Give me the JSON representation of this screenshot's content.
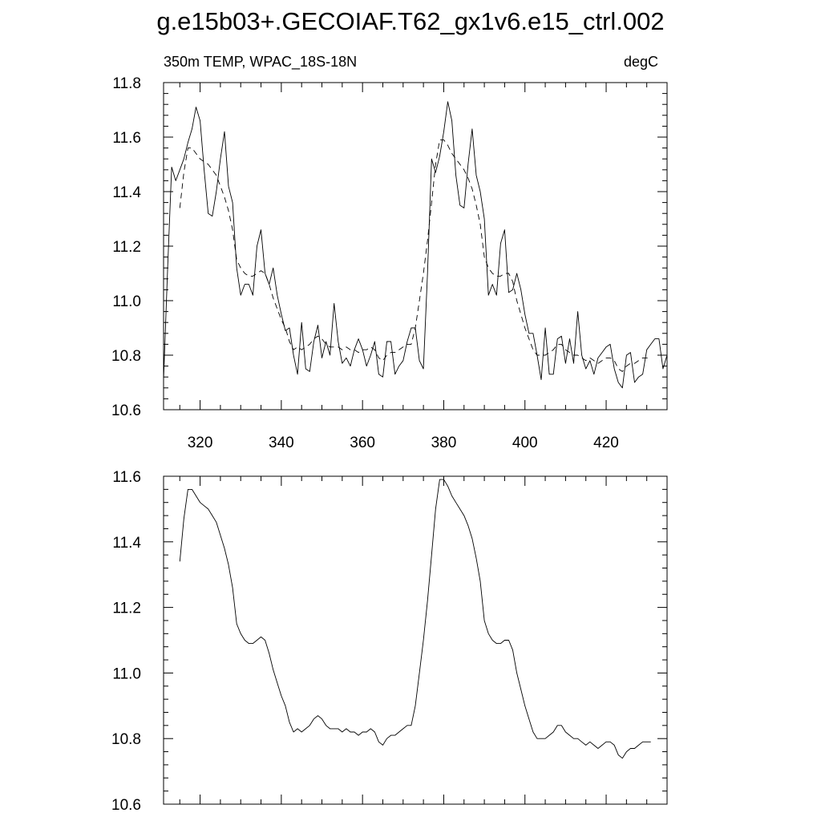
{
  "figure": {
    "title": "g.e15b03+.GECOIAF.T62_gx1v6.e15_ctrl.002"
  },
  "chart_data": [
    {
      "type": "line",
      "subtitle_left": "350m TEMP, WPAC_18S-18N",
      "subtitle_right": "degC",
      "xlabel": "",
      "ylabel": "",
      "xlim": [
        311,
        435
      ],
      "ylim": [
        10.6,
        11.8
      ],
      "xticks": [
        320,
        340,
        360,
        380,
        400,
        420
      ],
      "xtick_labels": [
        "320",
        "340",
        "360",
        "380",
        "400",
        "420"
      ],
      "yticks": [
        10.6,
        10.8,
        11.0,
        11.2,
        11.4,
        11.6,
        11.8
      ],
      "ytick_labels": [
        "10.6",
        "10.8",
        "11.0",
        "11.2",
        "11.4",
        "11.6",
        "11.8"
      ],
      "grid": false,
      "series": [
        {
          "style": "solid",
          "color": "#000000",
          "x": [
            311,
            312,
            313,
            314,
            315,
            316,
            317,
            318,
            319,
            320,
            321,
            322,
            323,
            324,
            325,
            326,
            327,
            328,
            329,
            330,
            331,
            332,
            333,
            334,
            335,
            336,
            337,
            338,
            339,
            340,
            341,
            342,
            343,
            344,
            345,
            346,
            347,
            348,
            349,
            350,
            351,
            352,
            353,
            354,
            355,
            356,
            357,
            358,
            359,
            360,
            361,
            362,
            363,
            364,
            365,
            366,
            367,
            368,
            369,
            370,
            371,
            372,
            373,
            374,
            375,
            376,
            377,
            378,
            379,
            380,
            381,
            382,
            383,
            384,
            385,
            386,
            387,
            388,
            389,
            390,
            391,
            392,
            393,
            394,
            395,
            396,
            397,
            398,
            399,
            400,
            401,
            402,
            403,
            404,
            405,
            406,
            407,
            408,
            409,
            410,
            411,
            412,
            413,
            414,
            415,
            416,
            417,
            418,
            419,
            420,
            421,
            422,
            423,
            424,
            425,
            426,
            427,
            428,
            429,
            430,
            431,
            432,
            433,
            434,
            435
          ],
          "values": [
            10.71,
            11.12,
            11.49,
            11.44,
            11.48,
            11.52,
            11.58,
            11.63,
            11.71,
            11.66,
            11.48,
            11.32,
            11.31,
            11.4,
            11.52,
            11.62,
            11.42,
            11.36,
            11.12,
            11.02,
            11.06,
            11.06,
            11.02,
            11.2,
            11.26,
            11.1,
            11.06,
            11.12,
            11.02,
            10.95,
            10.89,
            10.9,
            10.8,
            10.73,
            10.92,
            10.75,
            10.74,
            10.85,
            10.91,
            10.79,
            10.85,
            10.8,
            10.99,
            10.85,
            10.77,
            10.79,
            10.76,
            10.82,
            10.86,
            10.82,
            10.76,
            10.8,
            10.85,
            10.73,
            10.72,
            10.85,
            10.85,
            10.73,
            10.76,
            10.78,
            10.85,
            10.9,
            10.9,
            10.78,
            10.75,
            11.1,
            11.52,
            11.47,
            11.53,
            11.62,
            11.73,
            11.66,
            11.46,
            11.35,
            11.34,
            11.5,
            11.63,
            11.46,
            11.4,
            11.3,
            11.02,
            11.06,
            11.02,
            11.21,
            11.26,
            11.03,
            11.04,
            11.1,
            11.04,
            10.95,
            10.88,
            10.88,
            10.8,
            10.71,
            10.9,
            10.73,
            10.73,
            10.86,
            10.87,
            10.77,
            10.86,
            10.77,
            10.96,
            10.8,
            10.75,
            10.78,
            10.73,
            10.79,
            10.81,
            10.83,
            10.84,
            10.75,
            10.7,
            10.68,
            10.8,
            10.81,
            10.7,
            10.72,
            10.73,
            10.82,
            10.84,
            10.86,
            10.86,
            10.75,
            10.8
          ]
        },
        {
          "style": "dashed",
          "color": "#000000",
          "x": [
            315,
            316,
            317,
            318,
            319,
            320,
            321,
            322,
            323,
            324,
            325,
            326,
            327,
            328,
            329,
            330,
            331,
            332,
            333,
            334,
            335,
            336,
            337,
            338,
            339,
            340,
            341,
            342,
            343,
            344,
            345,
            346,
            347,
            348,
            349,
            350,
            351,
            352,
            353,
            354,
            355,
            356,
            357,
            358,
            359,
            360,
            361,
            362,
            363,
            364,
            365,
            366,
            367,
            368,
            369,
            370,
            371,
            372,
            373,
            374,
            375,
            376,
            377,
            378,
            379,
            380,
            381,
            382,
            383,
            384,
            385,
            386,
            387,
            388,
            389,
            390,
            391,
            392,
            393,
            394,
            395,
            396,
            397,
            398,
            399,
            400,
            401,
            402,
            403,
            404,
            405,
            406,
            407,
            408,
            409,
            410,
            411,
            412,
            413,
            414,
            415,
            416,
            417,
            418,
            419,
            420,
            421,
            422,
            423,
            424,
            425,
            426,
            427,
            428,
            429,
            430,
            431
          ],
          "values": [
            11.34,
            11.47,
            11.56,
            11.56,
            11.54,
            11.52,
            11.51,
            11.5,
            11.48,
            11.46,
            11.42,
            11.38,
            11.33,
            11.26,
            11.15,
            11.12,
            11.1,
            11.09,
            11.09,
            11.1,
            11.11,
            11.1,
            11.06,
            11.01,
            10.97,
            10.93,
            10.9,
            10.85,
            10.82,
            10.83,
            10.82,
            10.83,
            10.84,
            10.86,
            10.87,
            10.86,
            10.84,
            10.83,
            10.83,
            10.83,
            10.82,
            10.83,
            10.82,
            10.82,
            10.81,
            10.82,
            10.82,
            10.83,
            10.82,
            10.79,
            10.78,
            10.8,
            10.81,
            10.81,
            10.82,
            10.83,
            10.84,
            10.84,
            10.9,
            11.0,
            11.1,
            11.22,
            11.36,
            11.5,
            11.59,
            11.59,
            11.57,
            11.54,
            11.52,
            11.5,
            11.48,
            11.45,
            11.41,
            11.35,
            11.28,
            11.16,
            11.12,
            11.1,
            11.09,
            11.09,
            11.1,
            11.1,
            11.07,
            11.0,
            10.95,
            10.9,
            10.86,
            10.82,
            10.8,
            10.8,
            10.8,
            10.81,
            10.82,
            10.84,
            10.84,
            10.82,
            10.81,
            10.8,
            10.8,
            10.79,
            10.78,
            10.79,
            10.78,
            10.77,
            10.78,
            10.79,
            10.79,
            10.78,
            10.75,
            10.74,
            10.76,
            10.77,
            10.77,
            10.78,
            10.79,
            10.79,
            10.79
          ]
        }
      ]
    },
    {
      "type": "line",
      "xlabel": "",
      "ylabel": "",
      "xlim": [
        311,
        435
      ],
      "ylim": [
        10.6,
        11.6
      ],
      "xticks": [
        320,
        340,
        360,
        380,
        400,
        420
      ],
      "yticks": [
        10.6,
        10.8,
        11.0,
        11.2,
        11.4,
        11.6
      ],
      "ytick_labels": [
        "10.6",
        "10.8",
        "11.0",
        "11.2",
        "11.4",
        "11.6"
      ],
      "grid": false,
      "series": [
        {
          "style": "solid",
          "color": "#000000",
          "x": [
            315,
            316,
            317,
            318,
            319,
            320,
            321,
            322,
            323,
            324,
            325,
            326,
            327,
            328,
            329,
            330,
            331,
            332,
            333,
            334,
            335,
            336,
            337,
            338,
            339,
            340,
            341,
            342,
            343,
            344,
            345,
            346,
            347,
            348,
            349,
            350,
            351,
            352,
            353,
            354,
            355,
            356,
            357,
            358,
            359,
            360,
            361,
            362,
            363,
            364,
            365,
            366,
            367,
            368,
            369,
            370,
            371,
            372,
            373,
            374,
            375,
            376,
            377,
            378,
            379,
            380,
            381,
            382,
            383,
            384,
            385,
            386,
            387,
            388,
            389,
            390,
            391,
            392,
            393,
            394,
            395,
            396,
            397,
            398,
            399,
            400,
            401,
            402,
            403,
            404,
            405,
            406,
            407,
            408,
            409,
            410,
            411,
            412,
            413,
            414,
            415,
            416,
            417,
            418,
            419,
            420,
            421,
            422,
            423,
            424,
            425,
            426,
            427,
            428,
            429,
            430,
            431
          ],
          "values": [
            11.34,
            11.47,
            11.56,
            11.56,
            11.54,
            11.52,
            11.51,
            11.5,
            11.48,
            11.46,
            11.42,
            11.38,
            11.33,
            11.26,
            11.15,
            11.12,
            11.1,
            11.09,
            11.09,
            11.1,
            11.11,
            11.1,
            11.06,
            11.01,
            10.97,
            10.93,
            10.9,
            10.85,
            10.82,
            10.83,
            10.82,
            10.83,
            10.84,
            10.86,
            10.87,
            10.86,
            10.84,
            10.83,
            10.83,
            10.83,
            10.82,
            10.83,
            10.82,
            10.82,
            10.81,
            10.82,
            10.82,
            10.83,
            10.82,
            10.79,
            10.78,
            10.8,
            10.81,
            10.81,
            10.82,
            10.83,
            10.84,
            10.84,
            10.9,
            11.0,
            11.1,
            11.22,
            11.36,
            11.5,
            11.59,
            11.59,
            11.57,
            11.54,
            11.52,
            11.5,
            11.48,
            11.45,
            11.41,
            11.35,
            11.28,
            11.16,
            11.12,
            11.1,
            11.09,
            11.09,
            11.1,
            11.1,
            11.07,
            11.0,
            10.95,
            10.9,
            10.86,
            10.82,
            10.8,
            10.8,
            10.8,
            10.81,
            10.82,
            10.84,
            10.84,
            10.82,
            10.81,
            10.8,
            10.8,
            10.79,
            10.78,
            10.79,
            10.78,
            10.77,
            10.78,
            10.79,
            10.79,
            10.78,
            10.75,
            10.74,
            10.76,
            10.77,
            10.77,
            10.78,
            10.79,
            10.79,
            10.79
          ]
        }
      ]
    }
  ]
}
